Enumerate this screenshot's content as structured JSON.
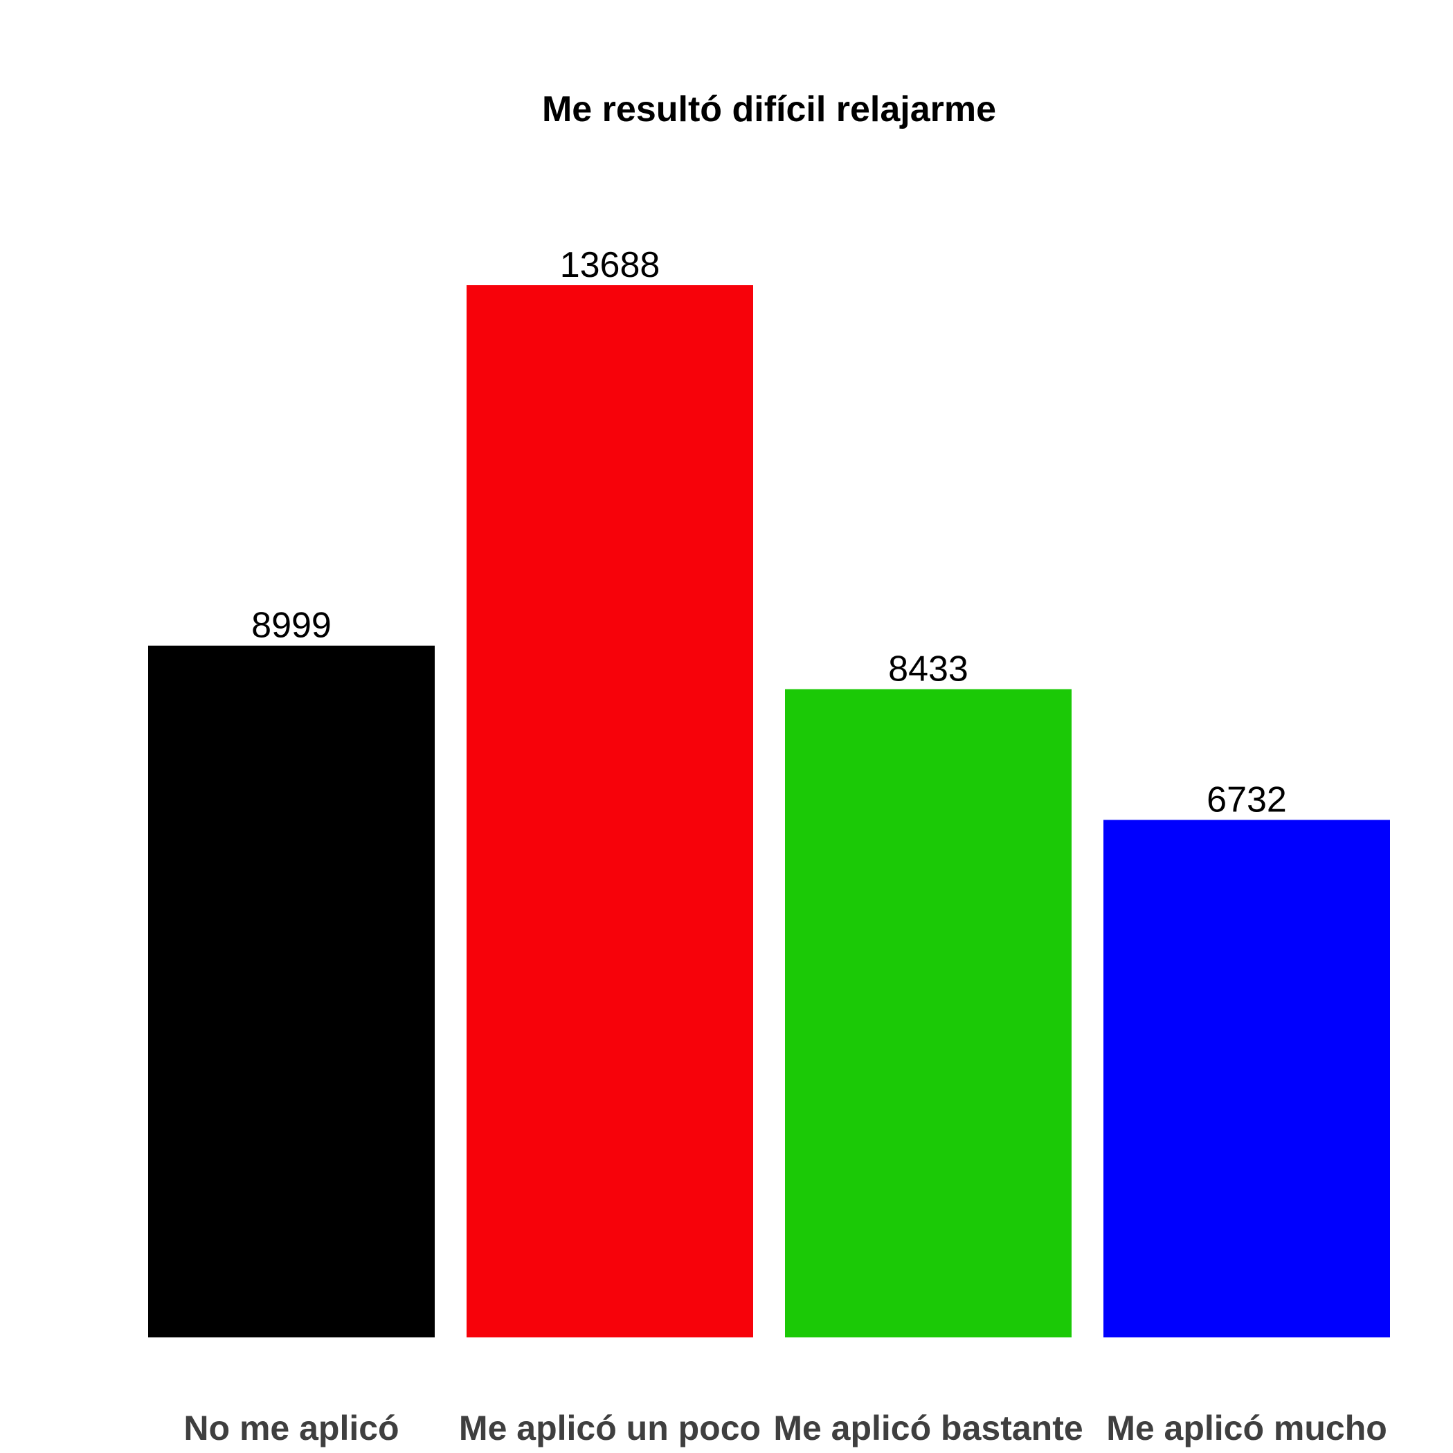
{
  "chart_data": {
    "type": "bar",
    "title": "Me resultó difícil relajarme",
    "xlabel": "",
    "ylabel": "",
    "categories": [
      "No me aplicó",
      "Me aplicó un poco",
      "Me aplicó bastante",
      "Me aplicó mucho"
    ],
    "values": [
      8999,
      13688,
      8433,
      6732
    ],
    "data_labels": [
      "8999",
      "13688",
      "8433",
      "6732"
    ],
    "colors": [
      "#000000",
      "#f7020a",
      "#1bc906",
      "#0000fe"
    ],
    "ylim": [
      0,
      16500
    ],
    "grid": false,
    "legend": "none",
    "y_axis_visible": false
  }
}
